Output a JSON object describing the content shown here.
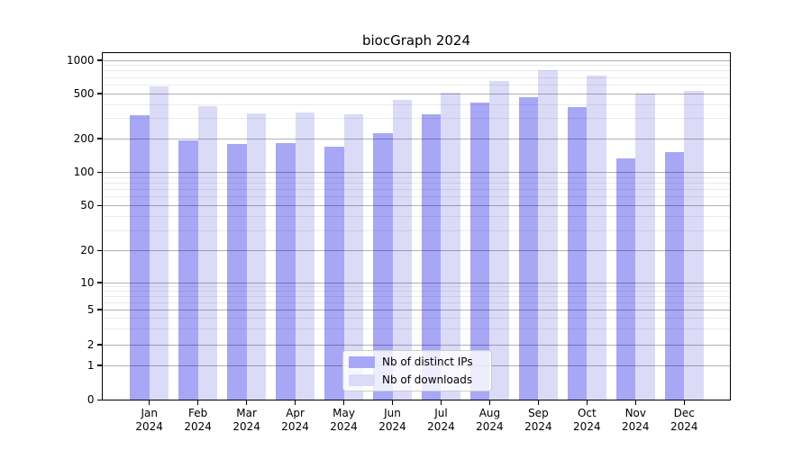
{
  "title": "biocGraph 2024",
  "colors": {
    "distinct_ips": "#a7a7f6",
    "downloads": "#dbdbf8",
    "grid_major": "#b0b0b0",
    "grid_minor": "#e8e8e8"
  },
  "legend": {
    "items": [
      {
        "label": "Nb of distinct IPs",
        "series": "distinct_ips"
      },
      {
        "label": "Nb of downloads",
        "series": "downloads"
      }
    ]
  },
  "y_axis": {
    "tick_labels": [
      "0",
      "1",
      "2",
      "5",
      "10",
      "20",
      "50",
      "100",
      "200",
      "500",
      "1000"
    ]
  },
  "x_axis": {
    "months": [
      {
        "month": "Jan",
        "year": "2024"
      },
      {
        "month": "Feb",
        "year": "2024"
      },
      {
        "month": "Mar",
        "year": "2024"
      },
      {
        "month": "Apr",
        "year": "2024"
      },
      {
        "month": "May",
        "year": "2024"
      },
      {
        "month": "Jun",
        "year": "2024"
      },
      {
        "month": "Jul",
        "year": "2024"
      },
      {
        "month": "Aug",
        "year": "2024"
      },
      {
        "month": "Sep",
        "year": "2024"
      },
      {
        "month": "Oct",
        "year": "2024"
      },
      {
        "month": "Nov",
        "year": "2024"
      },
      {
        "month": "Dec",
        "year": "2024"
      }
    ]
  },
  "chart_data": {
    "type": "bar",
    "title": "biocGraph 2024",
    "categories": [
      "Jan 2024",
      "Feb 2024",
      "Mar 2024",
      "Apr 2024",
      "May 2024",
      "Jun 2024",
      "Jul 2024",
      "Aug 2024",
      "Sep 2024",
      "Oct 2024",
      "Nov 2024",
      "Dec 2024"
    ],
    "series": [
      {
        "name": "Nb of distinct IPs",
        "color": "#a7a7f6",
        "values": [
          320,
          193,
          178,
          183,
          168,
          224,
          330,
          415,
          468,
          380,
          133,
          152
        ]
      },
      {
        "name": "Nb of downloads",
        "color": "#dbdbf8",
        "values": [
          580,
          390,
          335,
          342,
          330,
          440,
          508,
          652,
          810,
          733,
          500,
          525
        ]
      }
    ],
    "xlabel": "",
    "ylabel": "",
    "yscale": "symlog",
    "y_ticks": [
      0,
      1,
      2,
      5,
      10,
      20,
      50,
      100,
      200,
      500,
      1000
    ],
    "ylim": [
      0,
      1150
    ],
    "grid": true,
    "legend_position": "lower center"
  }
}
